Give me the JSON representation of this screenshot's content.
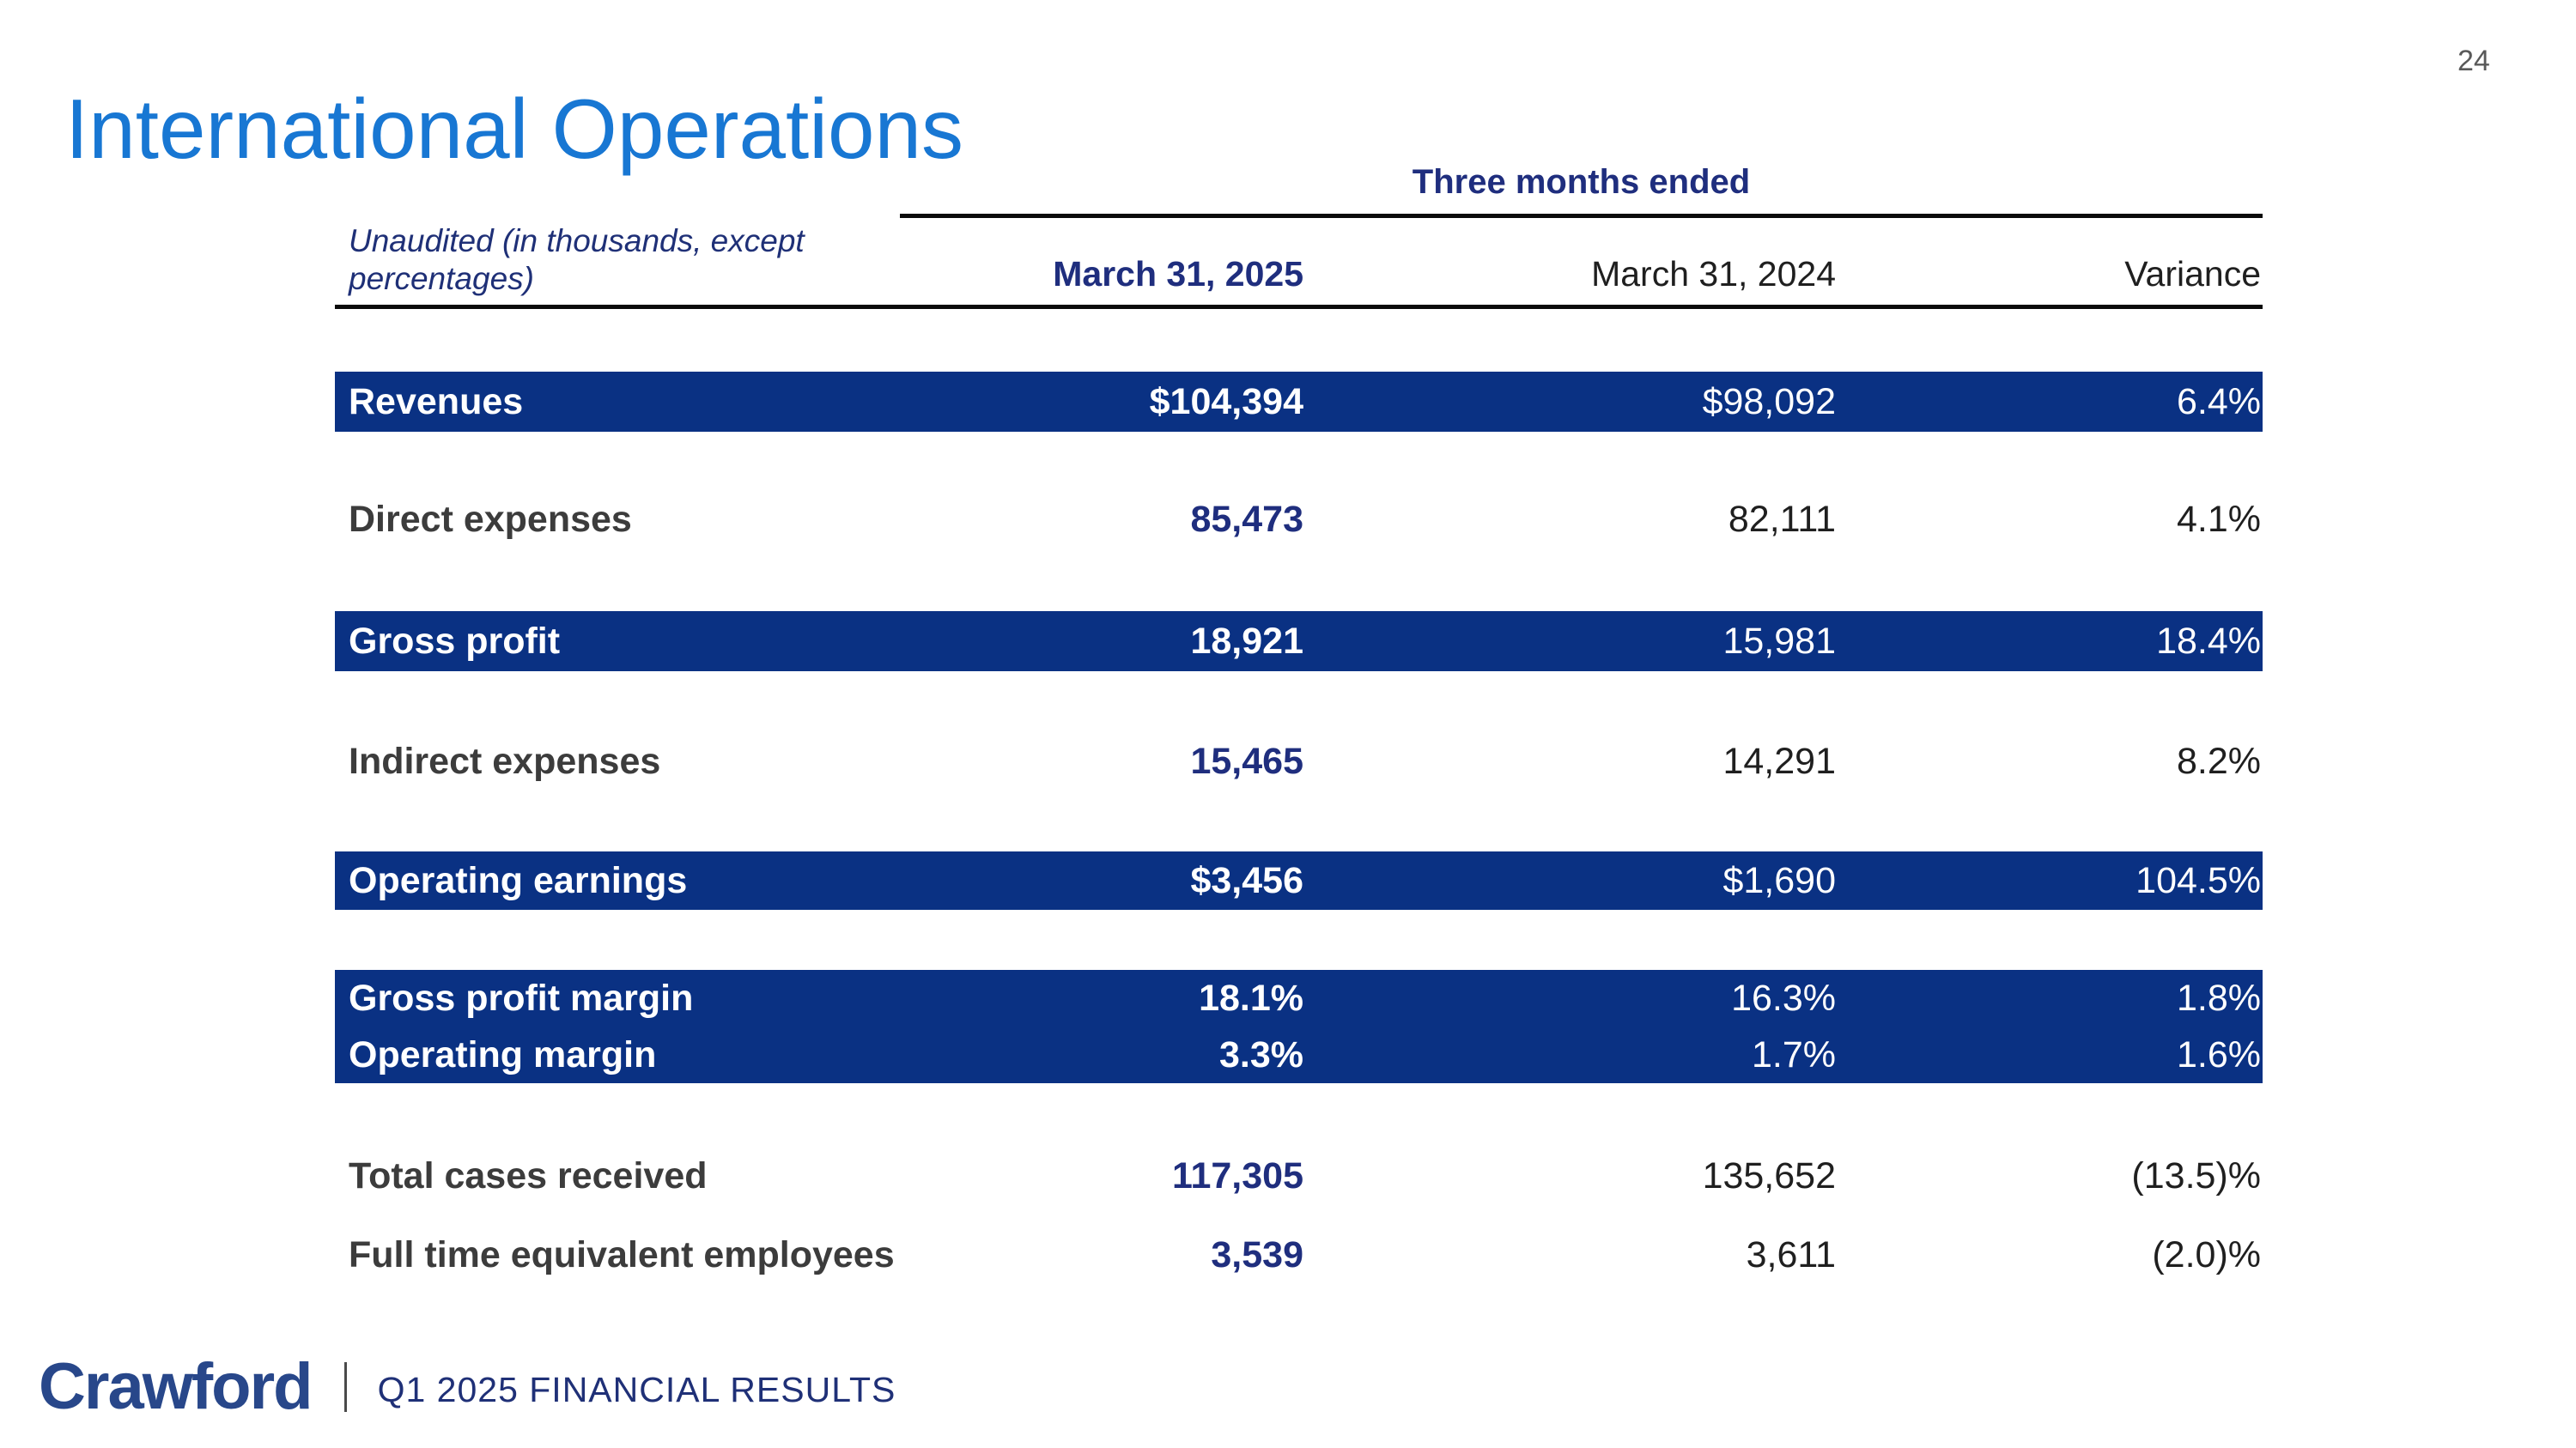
{
  "page": {
    "number": "24"
  },
  "title": "International Operations",
  "table": {
    "group_header": "Three months ended",
    "note_line1": "Unaudited (in thousands, except",
    "note_line2": "percentages)",
    "columns": {
      "col_2025": "March 31, 2025",
      "col_2024": "March 31, 2024",
      "col_variance": "Variance"
    },
    "rows": [
      {
        "label": "Revenues",
        "v2025": "$104,394",
        "v2024": "$98,092",
        "variance": "6.4%",
        "shaded": true
      },
      {
        "label": "Direct expenses",
        "v2025": "85,473",
        "v2024": "82,111",
        "variance": "4.1%",
        "shaded": false
      },
      {
        "label": "Gross profit",
        "v2025": "18,921",
        "v2024": "15,981",
        "variance": "18.4%",
        "shaded": true
      },
      {
        "label": "Indirect expenses",
        "v2025": "15,465",
        "v2024": "14,291",
        "variance": "8.2%",
        "shaded": false
      },
      {
        "label": "Operating earnings",
        "v2025": "$3,456",
        "v2024": "$1,690",
        "variance": "104.5%",
        "shaded": true
      },
      {
        "label": "Gross profit margin",
        "v2025": "18.1%",
        "v2024": "16.3%",
        "variance": "1.8%",
        "shaded": true
      },
      {
        "label": "Operating margin",
        "v2025": "3.3%",
        "v2024": "1.7%",
        "variance": "1.6%",
        "shaded": true
      },
      {
        "label": "Total cases received",
        "v2025": "117,305",
        "v2024": "135,652",
        "variance": "(13.5)%",
        "shaded": false
      },
      {
        "label": "Full time equivalent employees",
        "v2025": "3,539",
        "v2024": "3,611",
        "variance": "(2.0)%",
        "shaded": false
      }
    ]
  },
  "footer": {
    "logo": "Crawford",
    "caption": "Q1 2025 FINANCIAL RESULTS"
  },
  "colors": {
    "title_blue": "#1877D3",
    "bar_navy": "#0A3183",
    "text_navy": "#1F2E7E",
    "footer_navy": "#28478A",
    "page_number_gray": "#595959"
  }
}
